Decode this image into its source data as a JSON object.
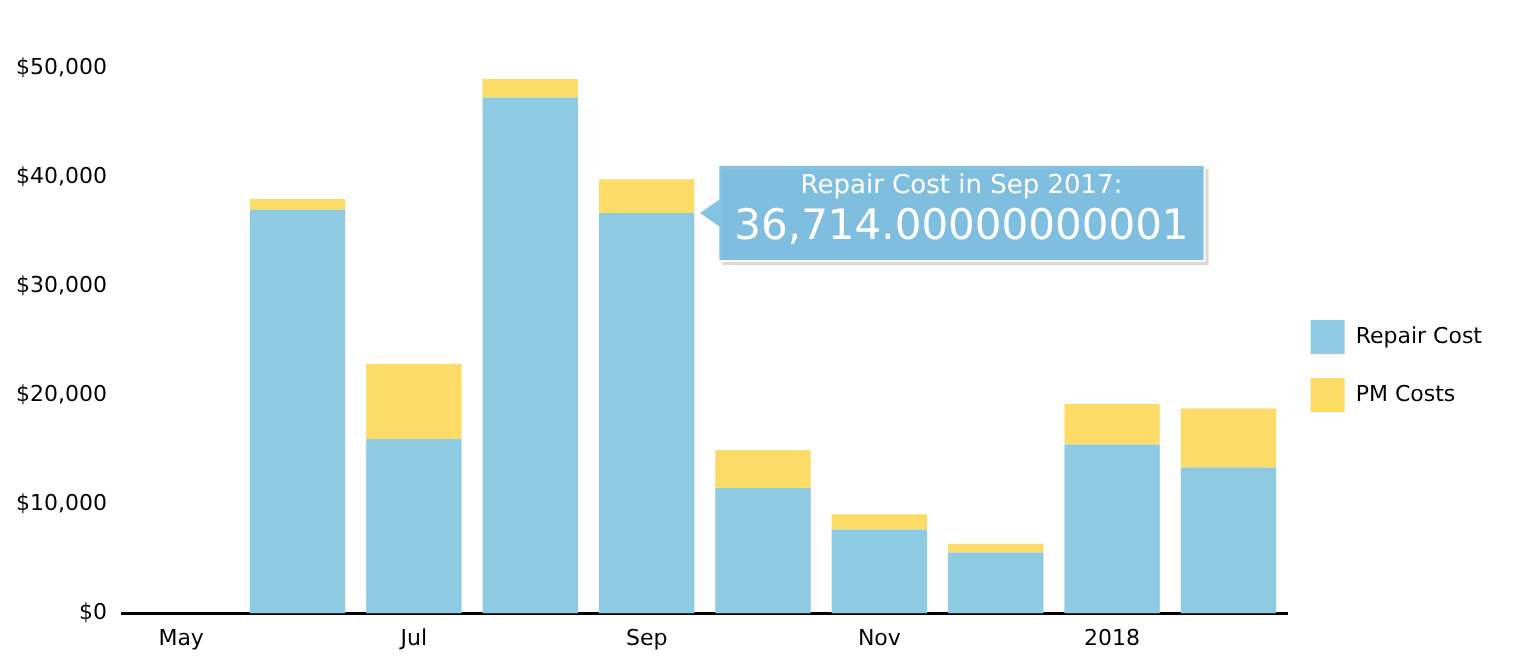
{
  "chart_data": {
    "type": "bar",
    "stacked": true,
    "categories": [
      "May",
      null,
      "Jul",
      null,
      "Sep",
      null,
      "Nov",
      null,
      "2018",
      null
    ],
    "series": [
      {
        "name": "Repair Cost",
        "color": "#8ecae2",
        "values": [
          null,
          37000,
          16000,
          47300,
          36714,
          11500,
          7700,
          5600,
          15500,
          13400
        ]
      },
      {
        "name": "PM Costs",
        "color": "#fcdc67",
        "values": [
          null,
          1000,
          6900,
          1700,
          3100,
          3500,
          1400,
          800,
          3700,
          5400
        ]
      }
    ],
    "ylim": [
      0,
      50000
    ],
    "yticks": [
      {
        "value": 0,
        "label": "$0"
      },
      {
        "value": 10000,
        "label": "$10,000"
      },
      {
        "value": 20000,
        "label": "$20,000"
      },
      {
        "value": 30000,
        "label": "$30,000"
      },
      {
        "value": 40000,
        "label": "$40,000"
      },
      {
        "value": 50000,
        "label": "$50,000"
      }
    ],
    "grid": false,
    "legend": "right",
    "annotations": [
      {
        "text": "Repair Cost in Sep 2017:\n36,714.00000000001",
        "x": "Sep",
        "y": 36714
      }
    ]
  }
}
